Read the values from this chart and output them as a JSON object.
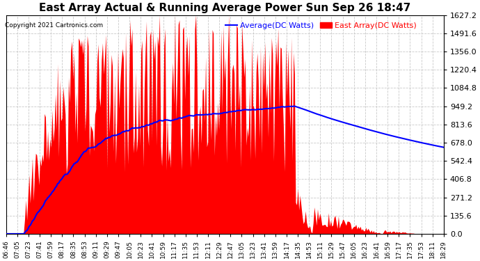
{
  "title": "East Array Actual & Running Average Power Sun Sep 26 18:47",
  "copyright": "Copyright 2021 Cartronics.com",
  "ylabel_right_values": [
    1627.2,
    1491.6,
    1356.0,
    1220.4,
    1084.8,
    949.2,
    813.6,
    678.0,
    542.4,
    406.8,
    271.2,
    135.6,
    0.0
  ],
  "ymax": 1627.2,
  "ymin": 0.0,
  "background_color": "#ffffff",
  "plot_bg_color": "#ffffff",
  "grid_color": "#bbbbbb",
  "bar_color": "#ff0000",
  "avg_line_color": "#0000ff",
  "title_color": "#000000",
  "copyright_color": "#000000",
  "legend_avg_color": "#0000ff",
  "legend_east_color": "#ff0000",
  "x_tick_labels": [
    "06:46",
    "07:05",
    "07:23",
    "07:41",
    "07:59",
    "08:17",
    "08:35",
    "08:53",
    "09:11",
    "09:29",
    "09:47",
    "10:05",
    "10:23",
    "10:41",
    "10:59",
    "11:17",
    "11:35",
    "11:53",
    "12:11",
    "12:29",
    "12:47",
    "13:05",
    "13:23",
    "13:41",
    "13:59",
    "14:17",
    "14:35",
    "14:53",
    "15:11",
    "15:29",
    "15:47",
    "16:05",
    "16:23",
    "16:41",
    "16:59",
    "17:17",
    "17:35",
    "17:53",
    "18:11",
    "18:29"
  ],
  "num_points": 400
}
